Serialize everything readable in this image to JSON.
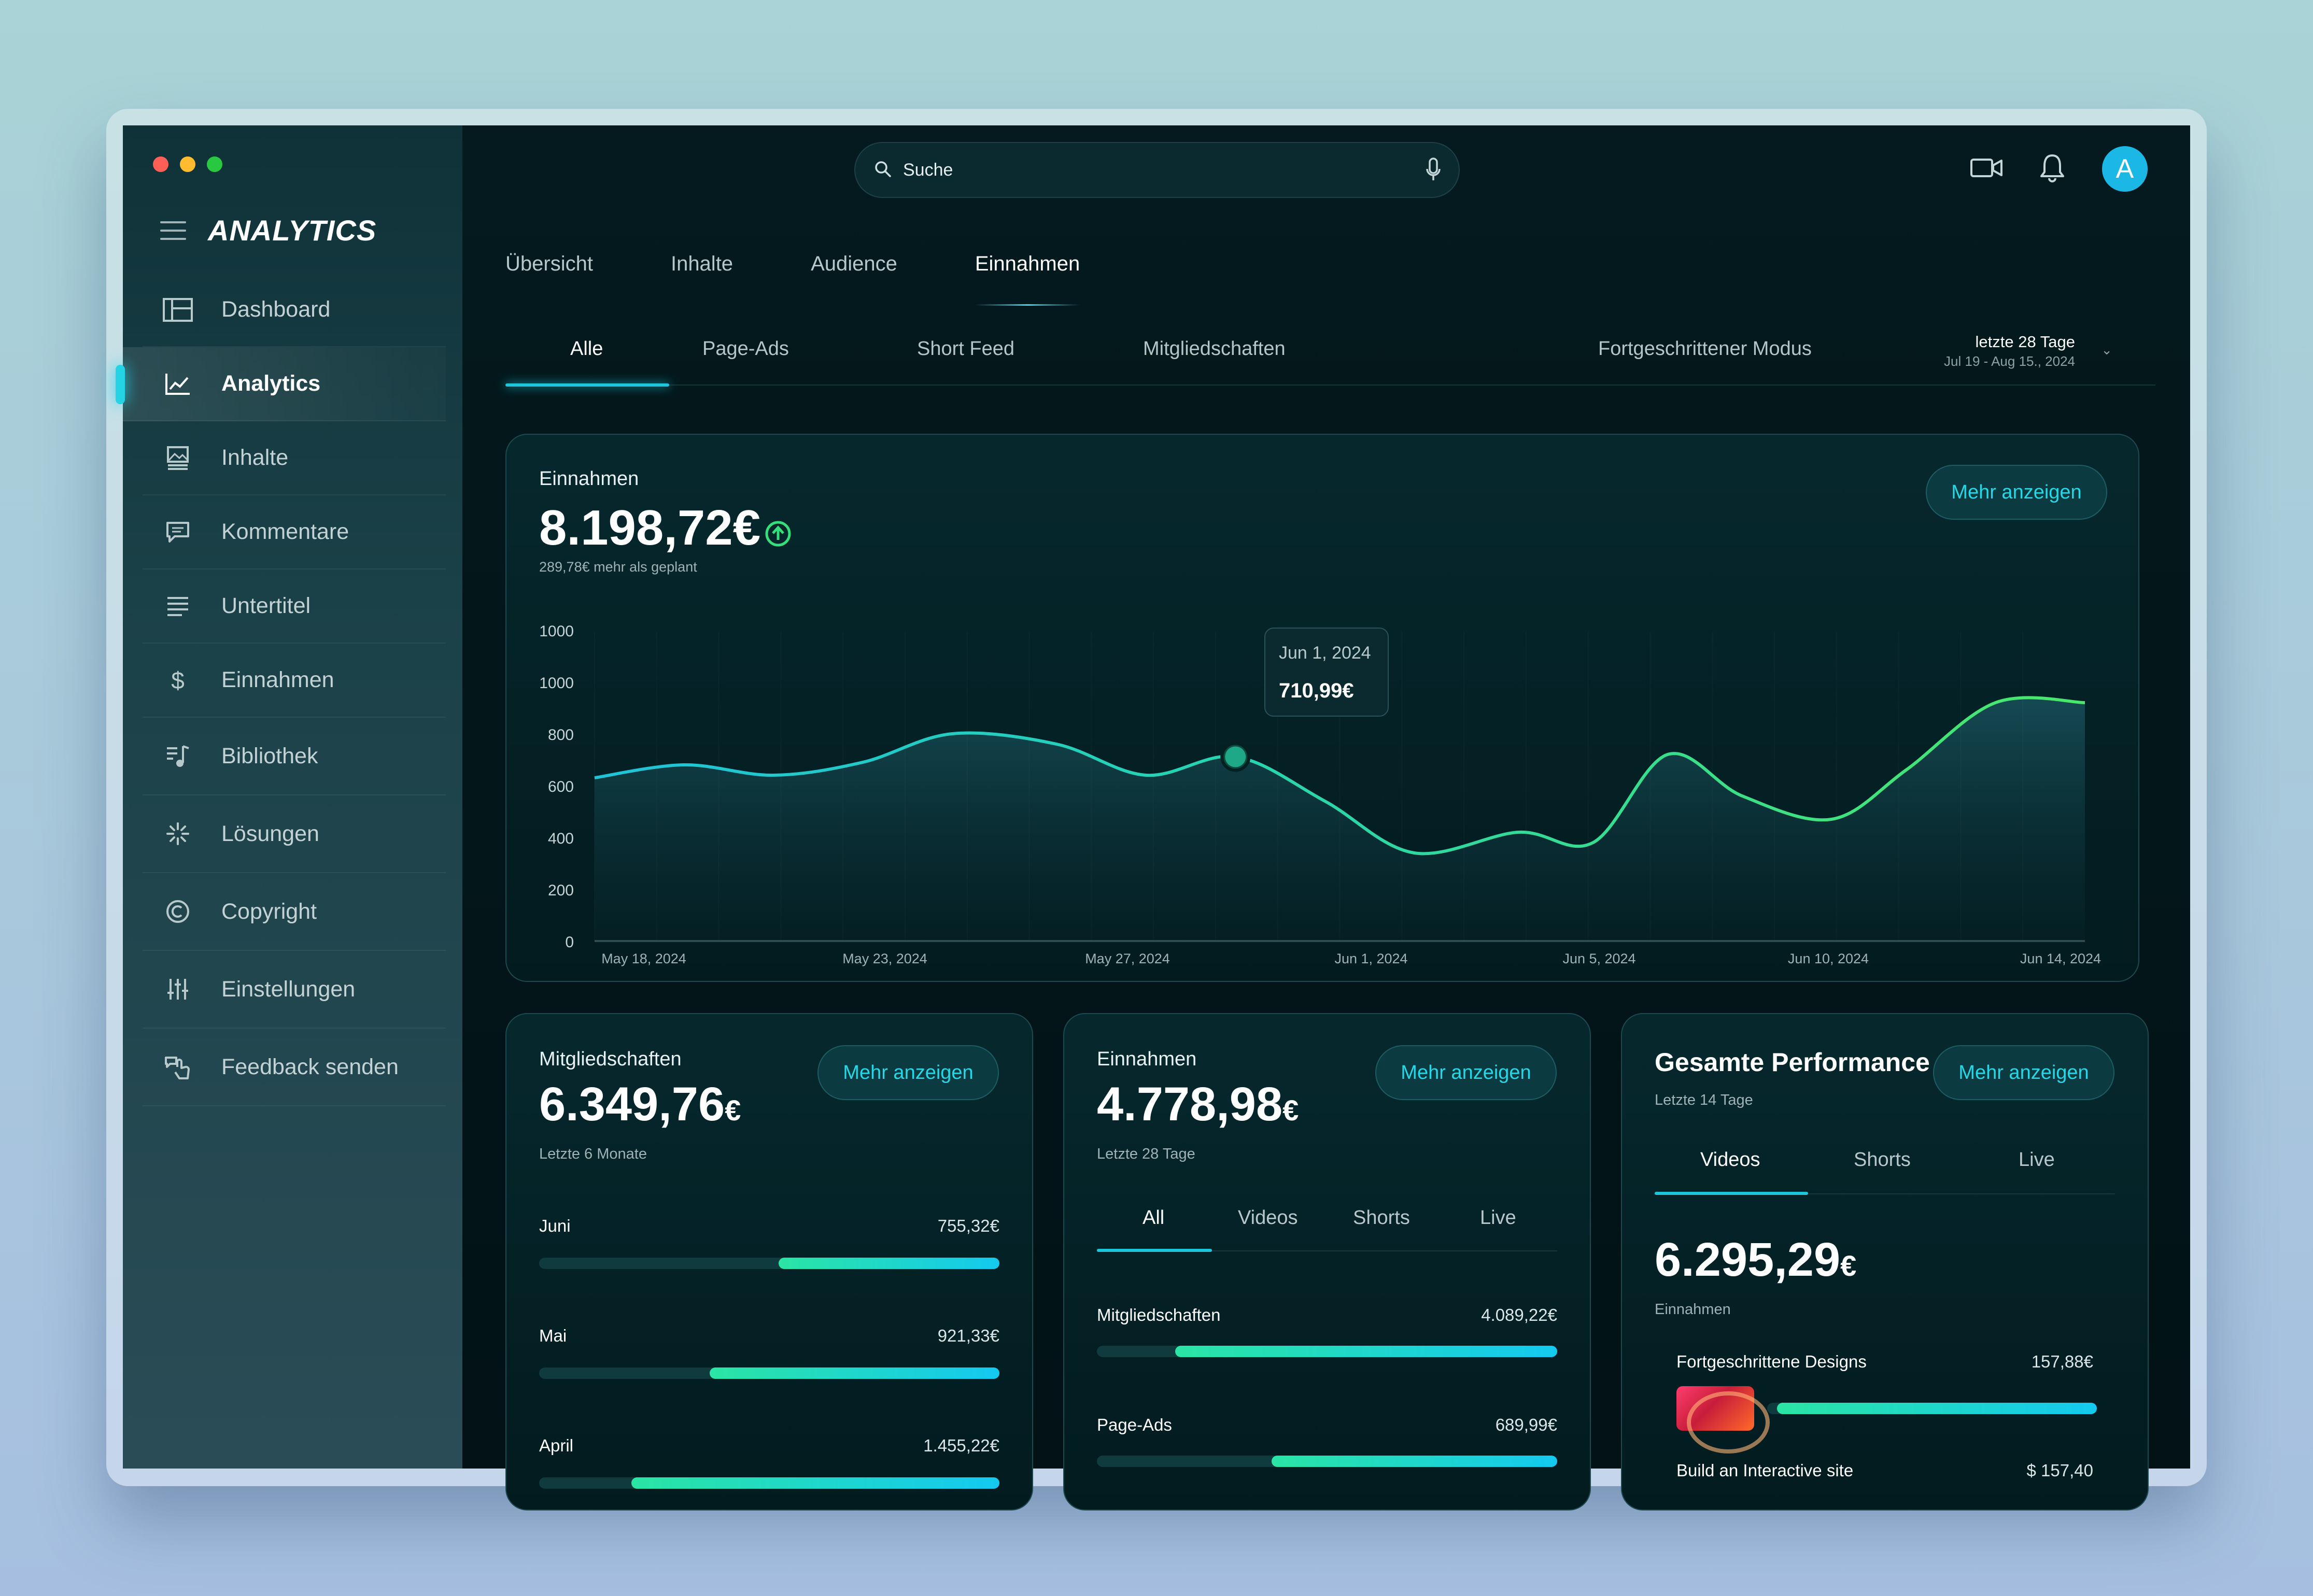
{
  "window": {
    "dots": [
      "#ff5f57",
      "#febc2e",
      "#28c840"
    ]
  },
  "sidebar": {
    "brand": "ANALYTICS",
    "items": [
      {
        "label": "Dashboard",
        "icon": "dashboard-icon"
      },
      {
        "label": "Analytics",
        "icon": "analytics-icon",
        "active": true
      },
      {
        "label": "Inhalte",
        "icon": "content-icon"
      },
      {
        "label": "Kommentare",
        "icon": "comments-icon"
      },
      {
        "label": "Untertitel",
        "icon": "subtitles-icon"
      },
      {
        "label": "Einnahmen",
        "icon": "dollar-icon"
      },
      {
        "label": "Bibliothek",
        "icon": "music-library-icon"
      },
      {
        "label": "Lösungen",
        "icon": "sparkle-icon"
      },
      {
        "label": "Copyright",
        "icon": "copyright-icon"
      },
      {
        "label": "Einstellungen",
        "icon": "sliders-icon"
      },
      {
        "label": "Feedback senden",
        "icon": "feedback-icon"
      }
    ]
  },
  "header": {
    "search": {
      "placeholder": "Suche"
    },
    "avatar_initial": "A",
    "accent": "#1bb8e6"
  },
  "tabs": [
    "Übersicht",
    "Inhalte",
    "Audience",
    "Einnahmen"
  ],
  "active_tab": "Einnahmen",
  "subtabs": [
    "Alle",
    "Page-Ads",
    "Short Feed",
    "Mitgliedschaften",
    "Fortgeschrittener Modus"
  ],
  "active_subtab": "Alle",
  "period": {
    "label": "letzte 28 Tage",
    "range": "Jul 19 - Aug 15., 2024"
  },
  "revenue_card": {
    "title": "Einnahmen",
    "value": "8.198,72€",
    "note": "289,78€ mehr als geplant",
    "more": "Mehr anzeigen",
    "tooltip": {
      "date": "Jun 1, 2024",
      "value": "710,99€"
    }
  },
  "chart_data": {
    "type": "area",
    "y_ticks": [
      "1000",
      "1000",
      "800",
      "600",
      "400",
      "200",
      "0"
    ],
    "ylim": [
      0,
      1200
    ],
    "x_ticks": [
      "May 18, 2024",
      "May 23, 2024",
      "May 27, 2024",
      "Jun 1, 2024",
      "Jun 5, 2024",
      "Jun 10, 2024",
      "Jun 14, 2024"
    ],
    "x": [
      0,
      0.06,
      0.12,
      0.18,
      0.24,
      0.31,
      0.37,
      0.43,
      0.49,
      0.55,
      0.62,
      0.67,
      0.72,
      0.77,
      0.83,
      0.88,
      0.94,
      1.0
    ],
    "values": [
      630,
      680,
      640,
      690,
      800,
      760,
      640,
      711,
      540,
      340,
      420,
      380,
      720,
      560,
      470,
      660,
      920,
      920
    ],
    "highlight": {
      "date": "Jun 1, 2024",
      "value": 711
    }
  },
  "members_card": {
    "title": "Mitgliedschaften",
    "value": "6.349,76",
    "currency": "€",
    "note": "Letzte 6 Monate",
    "more": "Mehr anzeigen",
    "rows": [
      {
        "label": "Juni",
        "value": "755,32€",
        "fraction": 0.48
      },
      {
        "label": "Mai",
        "value": "921,33€",
        "fraction": 0.63
      },
      {
        "label": "April",
        "value": "1.455,22€",
        "fraction": 0.8
      }
    ]
  },
  "income_card": {
    "title": "Einnahmen",
    "value": "4.778,98",
    "currency": "€",
    "note": "Letzte 28 Tage",
    "more": "Mehr anzeigen",
    "tabs": [
      "All",
      "Videos",
      "Shorts",
      "Live"
    ],
    "rows": [
      {
        "label": "Mitgliedschaften",
        "value": "4.089,22€",
        "fraction": 0.83
      },
      {
        "label": "Page-Ads",
        "value": "689,99€",
        "fraction": 0.62
      }
    ]
  },
  "performance_card": {
    "title": "Gesamte Performance",
    "note": "Letzte 14 Tage",
    "more": "Mehr anzeigen",
    "tabs": [
      "Videos",
      "Shorts",
      "Live"
    ],
    "value": "6.295,29",
    "currency": "€",
    "value_label": "Einnahmen",
    "rows": [
      {
        "label": "Fortgeschrittene Designs",
        "value": "157,88€",
        "fraction": 0.97
      },
      {
        "label": "Build an Interactive site",
        "value": "$ 157,40"
      }
    ]
  }
}
